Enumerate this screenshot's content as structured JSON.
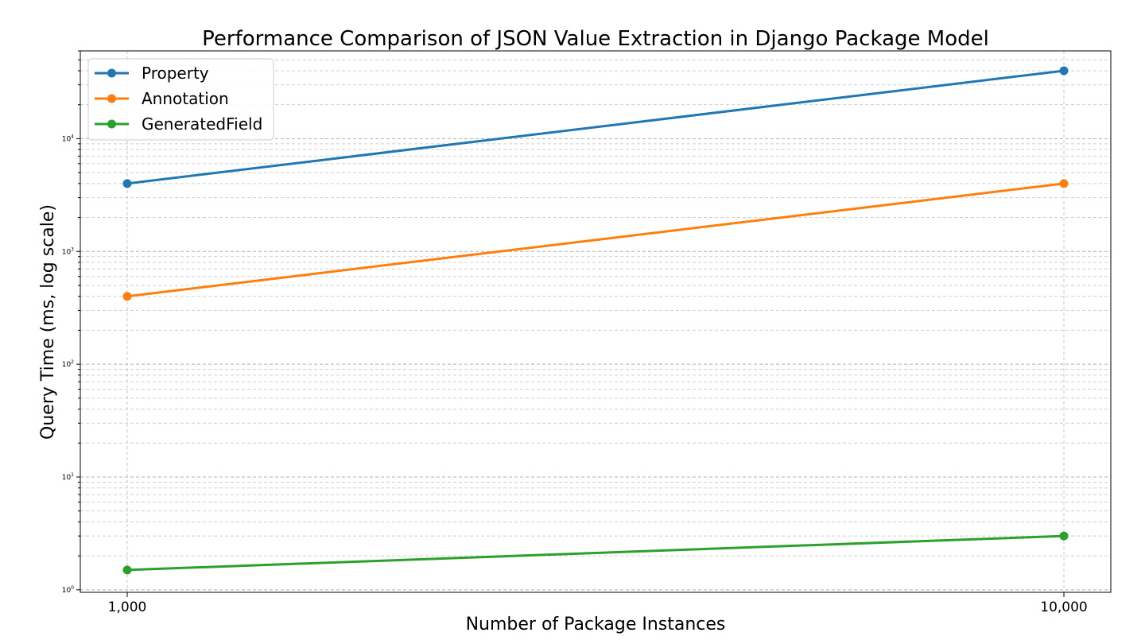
{
  "chart_data": {
    "type": "line",
    "title": "Performance Comparison of JSON Value Extraction in Django Package Model",
    "xlabel": "Number of Package Instances",
    "ylabel": "Query Time (ms, log scale)",
    "x": [
      1000,
      10000
    ],
    "x_tick_labels": [
      "1,000",
      "10,000"
    ],
    "y_scale": "log",
    "ylim": [
      0.95,
      60000
    ],
    "y_ticks": [
      {
        "value": 1,
        "base": "10",
        "exp": "0"
      },
      {
        "value": 10,
        "base": "10",
        "exp": "1"
      },
      {
        "value": 100,
        "base": "10",
        "exp": "2"
      },
      {
        "value": 1000,
        "base": "10",
        "exp": "3"
      },
      {
        "value": 10000,
        "base": "10",
        "exp": "4"
      }
    ],
    "grid": "major and minor, dashed",
    "legend_position": "top-left",
    "series": [
      {
        "name": "Property",
        "values": [
          4000,
          40000
        ],
        "color": "#1f77b4"
      },
      {
        "name": "Annotation",
        "values": [
          400,
          4000
        ],
        "color": "#ff7f0e"
      },
      {
        "name": "GeneratedField",
        "values": [
          1.5,
          3
        ],
        "color": "#2ca02c"
      }
    ]
  }
}
